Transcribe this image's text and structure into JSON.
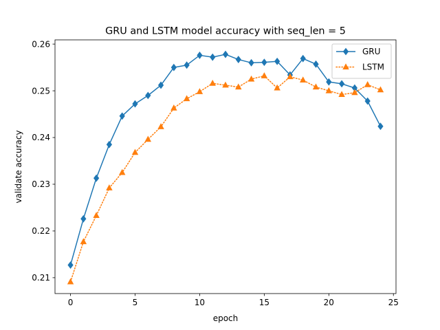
{
  "chart_data": {
    "type": "line",
    "title": "GRU and LSTM model accuracy with seq_len = 5",
    "xlabel": "epoch",
    "ylabel": "validate accuracy",
    "xlim": [
      -1.2,
      25.2
    ],
    "ylim": [
      0.2066,
      0.2609
    ],
    "xticks": [
      0,
      5,
      10,
      15,
      20,
      25
    ],
    "xtick_labels": [
      "0",
      "5",
      "10",
      "15",
      "20",
      "25"
    ],
    "yticks": [
      0.21,
      0.22,
      0.23,
      0.24,
      0.25,
      0.26
    ],
    "ytick_labels": [
      "0.21",
      "0.22",
      "0.23",
      "0.24",
      "0.25",
      "0.26"
    ],
    "grid": false,
    "legend_position": "upper right",
    "x": [
      0,
      1,
      2,
      3,
      4,
      5,
      6,
      7,
      8,
      9,
      10,
      11,
      12,
      13,
      14,
      15,
      16,
      17,
      18,
      19,
      20,
      21,
      22,
      23,
      24
    ],
    "series": [
      {
        "name": "GRU",
        "color": "#1f77b4",
        "line_style": "solid",
        "marker": "thin-diamond",
        "values": [
          0.2127,
          0.2226,
          0.2313,
          0.2385,
          0.2446,
          0.2472,
          0.249,
          0.2512,
          0.255,
          0.2555,
          0.2576,
          0.2572,
          0.2578,
          0.2567,
          0.256,
          0.2561,
          0.2563,
          0.2534,
          0.2569,
          0.2557,
          0.2519,
          0.2515,
          0.2506,
          0.2478,
          0.2424
        ]
      },
      {
        "name": "LSTM",
        "color": "#ff7f0e",
        "line_style": "dotted",
        "marker": "triangle-up",
        "values": [
          0.2091,
          0.2177,
          0.2233,
          0.2292,
          0.2325,
          0.2368,
          0.2396,
          0.2423,
          0.2463,
          0.2483,
          0.2498,
          0.2516,
          0.2512,
          0.2508,
          0.2525,
          0.2532,
          0.2506,
          0.253,
          0.2523,
          0.2508,
          0.25,
          0.2492,
          0.2496,
          0.2513,
          0.2502
        ]
      }
    ]
  }
}
